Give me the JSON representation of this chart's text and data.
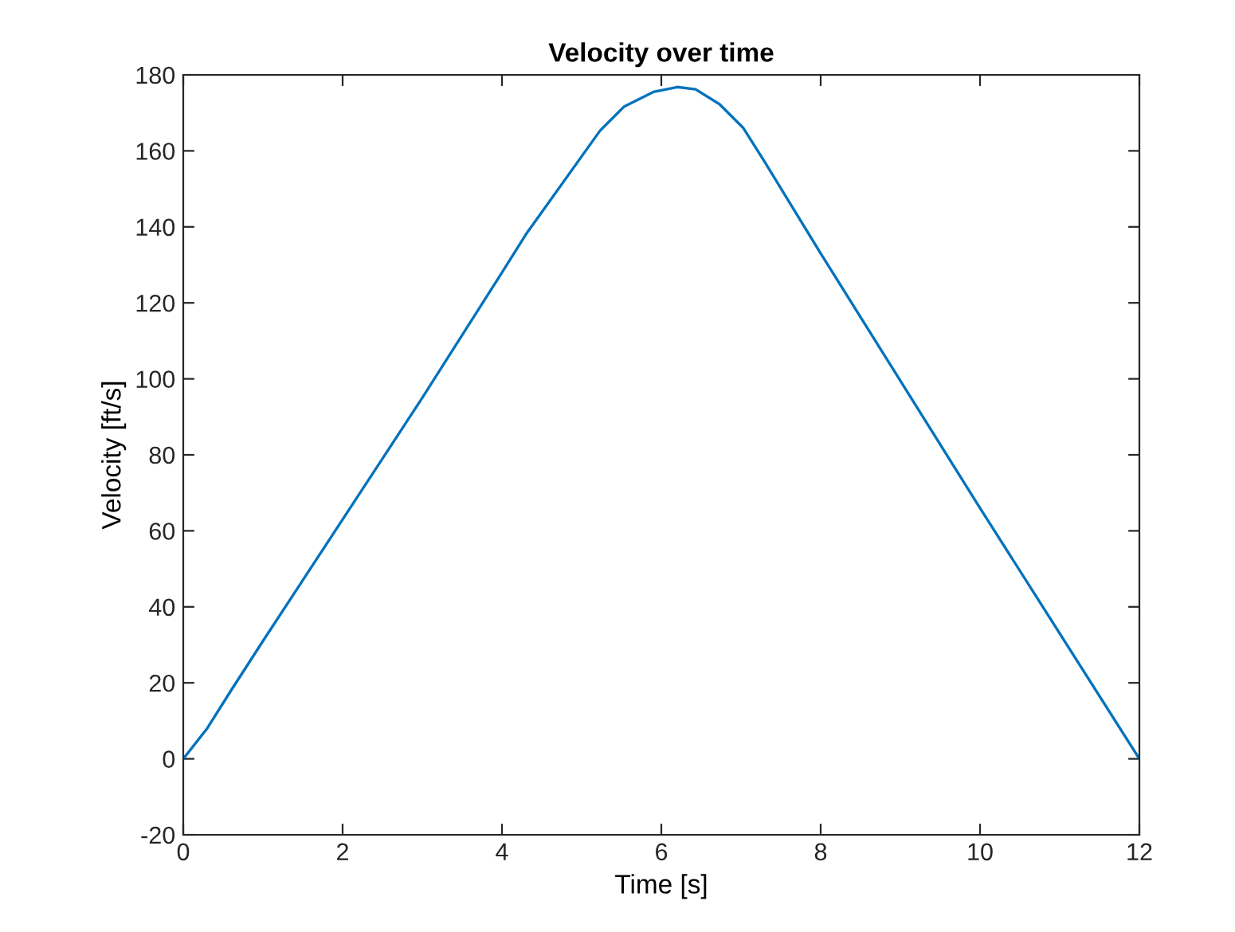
{
  "chart_data": {
    "type": "line",
    "title": "Velocity over time",
    "xlabel": "Time [s]",
    "ylabel": "Velocity [ft/s]",
    "x": [
      0,
      0.3,
      0.6,
      1,
      2,
      3,
      4,
      4.3,
      5.23,
      5.53,
      5.9,
      6.2,
      6.43,
      6.73,
      7.03,
      7.3,
      8,
      10,
      12
    ],
    "series": [
      {
        "color": "#0072bd",
        "values": [
          0,
          8,
          18,
          31,
          63,
          95,
          128,
          138,
          165.3,
          171.6,
          175.5,
          176.8,
          176.2,
          172.3,
          166,
          157,
          133,
          66,
          0
        ]
      }
    ],
    "xlim": [
      0,
      12
    ],
    "xticks": [
      0,
      2,
      4,
      6,
      8,
      10,
      12
    ],
    "ylim": [
      -20,
      180
    ],
    "yticks": [
      -20,
      0,
      20,
      40,
      60,
      80,
      100,
      120,
      140,
      160,
      180
    ],
    "grid": false,
    "legend": false,
    "marker": "none",
    "line_style": "solid"
  }
}
